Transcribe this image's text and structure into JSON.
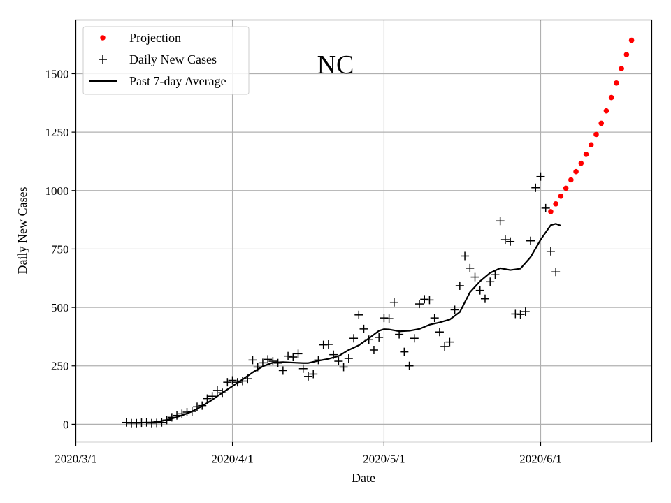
{
  "chart_data": {
    "type": "scatter",
    "title": "NC",
    "xlabel": "Date",
    "ylabel": "Daily New Cases",
    "xlim": [
      "2020-03-01",
      "2020-06-23"
    ],
    "ylim": [
      -75,
      1730
    ],
    "grid": true,
    "legend_position": "top-left",
    "x_ticks": [
      {
        "date": "2020-03-01",
        "label": "2020/3/1"
      },
      {
        "date": "2020-04-01",
        "label": "2020/4/1"
      },
      {
        "date": "2020-05-01",
        "label": "2020/5/1"
      },
      {
        "date": "2020-06-01",
        "label": "2020/6/1"
      }
    ],
    "y_ticks": [
      0,
      250,
      500,
      750,
      1000,
      1250,
      1500
    ],
    "series": [
      {
        "name": "Projection",
        "style": "dots",
        "color": "#ff0000",
        "points": [
          [
            "2020-06-03",
            910
          ],
          [
            "2020-06-04",
            943
          ],
          [
            "2020-06-05",
            976
          ],
          [
            "2020-06-06",
            1010
          ],
          [
            "2020-06-07",
            1046
          ],
          [
            "2020-06-08",
            1081
          ],
          [
            "2020-06-09",
            1117
          ],
          [
            "2020-06-10",
            1155
          ],
          [
            "2020-06-11",
            1196
          ],
          [
            "2020-06-12",
            1240
          ],
          [
            "2020-06-13",
            1288
          ],
          [
            "2020-06-14",
            1341
          ],
          [
            "2020-06-15",
            1398
          ],
          [
            "2020-06-16",
            1460
          ],
          [
            "2020-06-17",
            1522
          ],
          [
            "2020-06-18",
            1582
          ],
          [
            "2020-06-19",
            1643
          ]
        ]
      },
      {
        "name": "Daily New Cases",
        "style": "plus",
        "color": "#000000",
        "points": [
          [
            "2020-03-11",
            8
          ],
          [
            "2020-03-12",
            5
          ],
          [
            "2020-03-13",
            5
          ],
          [
            "2020-03-14",
            7
          ],
          [
            "2020-03-15",
            8
          ],
          [
            "2020-03-16",
            5
          ],
          [
            "2020-03-17",
            6
          ],
          [
            "2020-03-18",
            8
          ],
          [
            "2020-03-19",
            18
          ],
          [
            "2020-03-20",
            30
          ],
          [
            "2020-03-21",
            38
          ],
          [
            "2020-03-22",
            45
          ],
          [
            "2020-03-23",
            52
          ],
          [
            "2020-03-24",
            55
          ],
          [
            "2020-03-25",
            75
          ],
          [
            "2020-03-26",
            80
          ],
          [
            "2020-03-27",
            110
          ],
          [
            "2020-03-28",
            120
          ],
          [
            "2020-03-29",
            145
          ],
          [
            "2020-03-30",
            135
          ],
          [
            "2020-03-31",
            180
          ],
          [
            "2020-04-01",
            188
          ],
          [
            "2020-04-02",
            180
          ],
          [
            "2020-04-03",
            185
          ],
          [
            "2020-04-04",
            195
          ],
          [
            "2020-04-05",
            275
          ],
          [
            "2020-04-06",
            245
          ],
          [
            "2020-04-07",
            263
          ],
          [
            "2020-04-08",
            278
          ],
          [
            "2020-04-09",
            270
          ],
          [
            "2020-04-10",
            262
          ],
          [
            "2020-04-11",
            230
          ],
          [
            "2020-04-12",
            292
          ],
          [
            "2020-04-13",
            288
          ],
          [
            "2020-04-14",
            302
          ],
          [
            "2020-04-15",
            238
          ],
          [
            "2020-04-16",
            205
          ],
          [
            "2020-04-17",
            215
          ],
          [
            "2020-04-18",
            275
          ],
          [
            "2020-04-19",
            340
          ],
          [
            "2020-04-20",
            342
          ],
          [
            "2020-04-21",
            298
          ],
          [
            "2020-04-22",
            270
          ],
          [
            "2020-04-23",
            245
          ],
          [
            "2020-04-24",
            282
          ],
          [
            "2020-04-25",
            368
          ],
          [
            "2020-04-26",
            468
          ],
          [
            "2020-04-27",
            408
          ],
          [
            "2020-04-28",
            362
          ],
          [
            "2020-04-29",
            318
          ],
          [
            "2020-04-30",
            372
          ],
          [
            "2020-05-01",
            455
          ],
          [
            "2020-05-02",
            452
          ],
          [
            "2020-05-03",
            522
          ],
          [
            "2020-05-04",
            385
          ],
          [
            "2020-05-05",
            310
          ],
          [
            "2020-05-06",
            250
          ],
          [
            "2020-05-07",
            368
          ],
          [
            "2020-05-08",
            515
          ],
          [
            "2020-05-09",
            535
          ],
          [
            "2020-05-10",
            532
          ],
          [
            "2020-05-11",
            455
          ],
          [
            "2020-05-12",
            395
          ],
          [
            "2020-05-13",
            333
          ],
          [
            "2020-05-14",
            352
          ],
          [
            "2020-05-15",
            490
          ],
          [
            "2020-05-16",
            593
          ],
          [
            "2020-05-17",
            720
          ],
          [
            "2020-05-18",
            668
          ],
          [
            "2020-05-19",
            630
          ],
          [
            "2020-05-20",
            573
          ],
          [
            "2020-05-21",
            537
          ],
          [
            "2020-05-22",
            610
          ],
          [
            "2020-05-23",
            640
          ],
          [
            "2020-05-24",
            870
          ],
          [
            "2020-05-25",
            790
          ],
          [
            "2020-05-26",
            782
          ],
          [
            "2020-05-27",
            472
          ],
          [
            "2020-05-28",
            470
          ],
          [
            "2020-05-29",
            482
          ],
          [
            "2020-05-30",
            785
          ],
          [
            "2020-05-31",
            1012
          ],
          [
            "2020-06-01",
            1060
          ],
          [
            "2020-06-02",
            925
          ],
          [
            "2020-06-03",
            740
          ],
          [
            "2020-06-04",
            652
          ]
        ]
      },
      {
        "name": "Past 7-day Average",
        "style": "line",
        "color": "#000000",
        "points": [
          [
            "2020-03-11",
            7
          ],
          [
            "2020-03-14",
            7
          ],
          [
            "2020-03-16",
            8
          ],
          [
            "2020-03-18",
            14
          ],
          [
            "2020-03-20",
            24
          ],
          [
            "2020-03-22",
            38
          ],
          [
            "2020-03-24",
            55
          ],
          [
            "2020-03-26",
            78
          ],
          [
            "2020-03-28",
            105
          ],
          [
            "2020-03-30",
            135
          ],
          [
            "2020-04-01",
            163
          ],
          [
            "2020-04-03",
            192
          ],
          [
            "2020-04-05",
            222
          ],
          [
            "2020-04-07",
            248
          ],
          [
            "2020-04-09",
            264
          ],
          [
            "2020-04-11",
            266
          ],
          [
            "2020-04-13",
            264
          ],
          [
            "2020-04-15",
            262
          ],
          [
            "2020-04-16",
            262
          ],
          [
            "2020-04-18",
            272
          ],
          [
            "2020-04-20",
            280
          ],
          [
            "2020-04-22",
            292
          ],
          [
            "2020-04-24",
            318
          ],
          [
            "2020-04-26",
            338
          ],
          [
            "2020-04-28",
            368
          ],
          [
            "2020-04-30",
            400
          ],
          [
            "2020-05-01",
            407
          ],
          [
            "2020-05-02",
            406
          ],
          [
            "2020-05-04",
            398
          ],
          [
            "2020-05-06",
            400
          ],
          [
            "2020-05-08",
            408
          ],
          [
            "2020-05-10",
            426
          ],
          [
            "2020-05-12",
            436
          ],
          [
            "2020-05-14",
            448
          ],
          [
            "2020-05-16",
            480
          ],
          [
            "2020-05-18",
            565
          ],
          [
            "2020-05-20",
            612
          ],
          [
            "2020-05-22",
            648
          ],
          [
            "2020-05-24",
            668
          ],
          [
            "2020-05-26",
            660
          ],
          [
            "2020-05-28",
            666
          ],
          [
            "2020-05-30",
            715
          ],
          [
            "2020-06-01",
            790
          ],
          [
            "2020-06-03",
            852
          ],
          [
            "2020-06-04",
            858
          ],
          [
            "2020-06-05",
            850
          ]
        ]
      }
    ]
  }
}
